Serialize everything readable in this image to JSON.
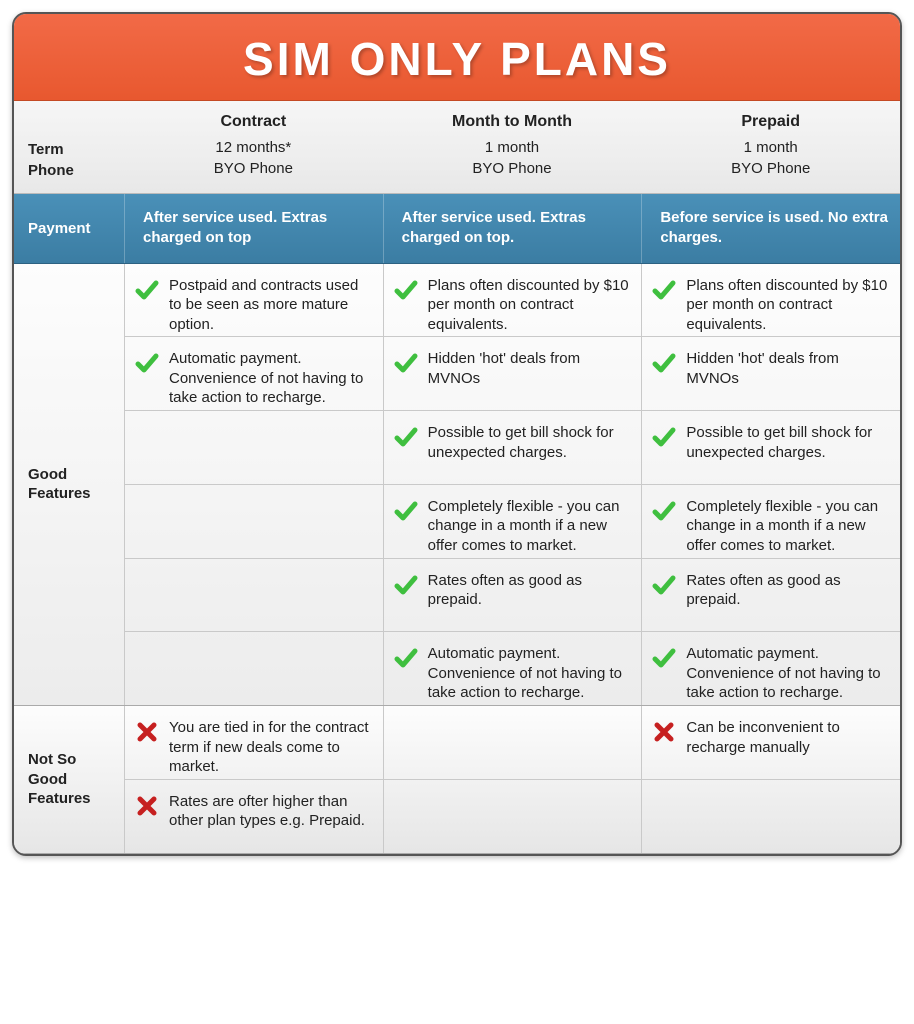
{
  "title": "SIM ONLY PLANS",
  "colors": {
    "header_bg_top": "#f26a47",
    "header_bg_bottom": "#e8582f",
    "payment_bg_top": "#4a90b8",
    "payment_bg_bottom": "#3b7da3",
    "check_color": "#3fbf3f",
    "cross_color": "#c62020",
    "border_color": "#555555",
    "text_color": "#222222"
  },
  "row_labels": {
    "term": "Term",
    "phone": "Phone",
    "payment": "Payment",
    "good": "Good Features",
    "not_good": "Not So Good Features"
  },
  "plans": [
    {
      "name": "Contract",
      "term": "12 months*",
      "phone": "BYO Phone",
      "payment": "After service used. Extras charged on top",
      "good": [
        "Postpaid and contracts used to be seen as more mature option.",
        "Automatic payment. Convenience of not having to take action to  recharge.",
        "",
        "",
        "",
        ""
      ],
      "bad": [
        "You are tied in for the contract term if new deals come to market.",
        "Rates are ofter higher than other plan types e.g. Prepaid."
      ]
    },
    {
      "name": "Month to Month",
      "term": "1 month",
      "phone": "BYO Phone",
      "payment": "After service used. Extras charged on top.",
      "good": [
        "Plans often discounted by $10 per month on contract equivalents.",
        "Hidden 'hot' deals from MVNOs",
        "Possible to get bill shock for unexpected charges.",
        "Completely flexible - you can change in a month if a new offer comes to market.",
        "Rates often as good as prepaid.",
        "Automatic payment. Convenience of not having to take action to  recharge."
      ],
      "bad": [
        "",
        ""
      ]
    },
    {
      "name": "Prepaid",
      "term": "1 month",
      "phone": "BYO Phone",
      "payment": "Before service is used. No extra charges.",
      "good": [
        "Plans often discounted by $10 per month on contract equivalents.",
        "Hidden 'hot' deals from MVNOs",
        "Possible to get bill shock for unexpected charges.",
        "Completely flexible - you can change in a month if a new offer comes to market.",
        "Rates often as good as prepaid.",
        "Automatic payment. Convenience of not having to take action to  recharge."
      ],
      "bad": [
        "Can be inconvenient to recharge manually",
        ""
      ]
    }
  ]
}
